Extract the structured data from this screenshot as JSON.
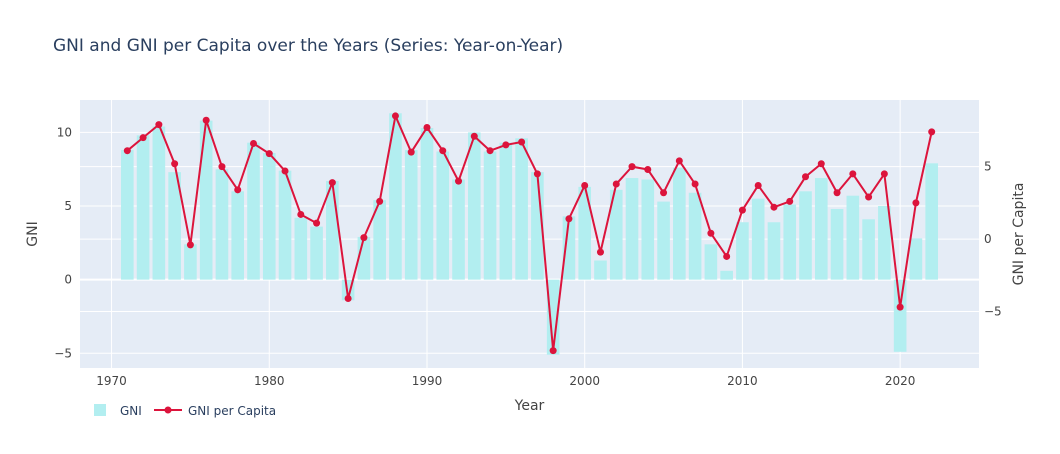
{
  "chart_data": {
    "type": "bar+line",
    "title": "GNI and GNI per Capita over the Years (Series: Year-on-Year)",
    "xlabel": "Year",
    "ylabel_left": "GNI",
    "ylabel_right": "GNI per Capita",
    "x_ticks": [
      1970,
      1980,
      1990,
      2000,
      2010,
      2020
    ],
    "y_left_ticks": [
      -5,
      0,
      5,
      10
    ],
    "y_right_ticks": [
      -5,
      0,
      5
    ],
    "xlim": [
      1968,
      2025
    ],
    "ylim_left": [
      -6,
      12.2
    ],
    "ylim_right": [
      -8.9,
      9.6
    ],
    "grid": true,
    "legend_position": "bottom-left",
    "colors": {
      "bar": "#b2eef0",
      "line": "#dc143c",
      "plot_bg": "#e5ecf6",
      "grid": "#ffffff"
    },
    "x": [
      1971,
      1972,
      1973,
      1974,
      1975,
      1976,
      1977,
      1978,
      1979,
      1980,
      1981,
      1982,
      1983,
      1984,
      1985,
      1986,
      1987,
      1988,
      1989,
      1990,
      1991,
      1992,
      1993,
      1994,
      1995,
      1996,
      1997,
      1998,
      1999,
      2000,
      2001,
      2002,
      2003,
      2004,
      2005,
      2006,
      2007,
      2008,
      2009,
      2010,
      2011,
      2012,
      2013,
      2014,
      2015,
      2016,
      2017,
      2018,
      2019,
      2020,
      2021,
      2022
    ],
    "series": [
      {
        "name": "GNI",
        "type": "bar",
        "axis": "left",
        "values": [
          8.8,
          9.8,
          10.4,
          7.3,
          2.4,
          10.8,
          7.5,
          6.0,
          9.3,
          8.6,
          7.4,
          4.2,
          3.6,
          6.7,
          -1.4,
          2.9,
          5.4,
          11.3,
          8.8,
          10.3,
          8.7,
          6.8,
          10.0,
          8.7,
          9.3,
          9.6,
          7.3,
          -5.1,
          4.3,
          6.3,
          1.3,
          6.1,
          6.9,
          6.8,
          5.3,
          7.6,
          5.9,
          2.4,
          0.6,
          3.9,
          5.5,
          3.9,
          5.1,
          6.0,
          6.9,
          4.8,
          5.7,
          4.1,
          5.0,
          -4.9,
          2.8,
          7.9
        ]
      },
      {
        "name": "GNI per Capita",
        "type": "line",
        "axis": "right",
        "values": [
          6.1,
          7.0,
          7.9,
          5.2,
          -0.4,
          8.2,
          5.0,
          3.4,
          6.6,
          5.9,
          4.7,
          1.7,
          1.1,
          3.9,
          -4.1,
          0.1,
          2.6,
          8.5,
          6.0,
          7.7,
          6.1,
          4.0,
          7.1,
          6.1,
          6.5,
          6.7,
          4.5,
          -7.7,
          1.4,
          3.7,
          -0.9,
          3.8,
          5.0,
          4.8,
          3.2,
          5.4,
          3.8,
          0.4,
          -1.2,
          2.0,
          3.7,
          2.2,
          2.6,
          4.3,
          5.2,
          3.2,
          4.5,
          2.9,
          4.5,
          -4.7,
          2.5,
          7.4
        ]
      }
    ]
  }
}
